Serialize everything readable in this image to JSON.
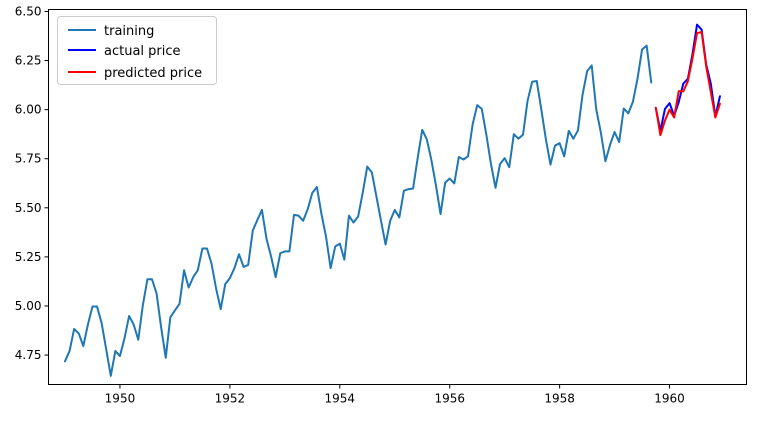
{
  "chart_data": {
    "type": "line",
    "title": "",
    "xlabel": "",
    "ylabel": "",
    "xlim": [
      1948.7,
      1961.4
    ],
    "ylim": [
      4.6,
      6.51
    ],
    "grid": false,
    "legend_position": "top-left",
    "x_ticks": [
      1950,
      1952,
      1954,
      1956,
      1958,
      1960
    ],
    "x_tick_labels": [
      "1950",
      "1952",
      "1954",
      "1956",
      "1958",
      "1960"
    ],
    "y_ticks": [
      4.75,
      5.0,
      5.25,
      5.5,
      5.75,
      6.0,
      6.25,
      6.5
    ],
    "y_tick_labels": [
      "4.75",
      "5.00",
      "5.25",
      "5.50",
      "5.75",
      "6.00",
      "6.25",
      "6.50"
    ],
    "series": [
      {
        "name": "training",
        "color": "#1f77b4",
        "x_start": "1949-01",
        "frequency": "monthly",
        "values": [
          4.718,
          4.771,
          4.883,
          4.86,
          4.796,
          4.905,
          4.997,
          4.997,
          4.913,
          4.779,
          4.644,
          4.771,
          4.745,
          4.836,
          4.949,
          4.905,
          4.828,
          5.004,
          5.136,
          5.136,
          5.063,
          4.89,
          4.736,
          4.942,
          4.977,
          5.011,
          5.182,
          5.094,
          5.147,
          5.182,
          5.293,
          5.293,
          5.215,
          5.088,
          4.984,
          5.112,
          5.142,
          5.193,
          5.263,
          5.199,
          5.209,
          5.384,
          5.438,
          5.489,
          5.342,
          5.252,
          5.147,
          5.268,
          5.278,
          5.278,
          5.464,
          5.46,
          5.434,
          5.493,
          5.576,
          5.606,
          5.468,
          5.352,
          5.193,
          5.303,
          5.318,
          5.236,
          5.46,
          5.425,
          5.455,
          5.576,
          5.71,
          5.68,
          5.557,
          5.434,
          5.313,
          5.434,
          5.489,
          5.451,
          5.587,
          5.595,
          5.598,
          5.753,
          5.897,
          5.849,
          5.743,
          5.613,
          5.468,
          5.628,
          5.649,
          5.624,
          5.759,
          5.746,
          5.762,
          5.924,
          6.023,
          6.004,
          5.872,
          5.724,
          5.602,
          5.724,
          5.753,
          5.707,
          5.875,
          5.852,
          5.872,
          6.045,
          6.142,
          6.146,
          6.001,
          5.849,
          5.72,
          5.817,
          5.829,
          5.762,
          5.892,
          5.852,
          5.894,
          6.075,
          6.196,
          6.225,
          6.001,
          5.883,
          5.737,
          5.82,
          5.886,
          5.835,
          6.006,
          5.981,
          6.04,
          6.157,
          6.306,
          6.326,
          6.138
        ]
      },
      {
        "name": "actual price",
        "color": "#0000ff",
        "x_start": "1959-10",
        "frequency": "monthly",
        "values": [
          6.009,
          5.892,
          6.004,
          6.033,
          5.969,
          6.038,
          6.133,
          6.157,
          6.282,
          6.433,
          6.407,
          6.23,
          6.133,
          5.966,
          6.068
        ]
      },
      {
        "name": "predicted price",
        "color": "#ff0000",
        "x_start": "1959-10",
        "frequency": "monthly",
        "values": [
          6.009,
          5.87,
          5.945,
          6.0,
          5.96,
          6.094,
          6.093,
          6.145,
          6.26,
          6.39,
          6.395,
          6.22,
          6.09,
          5.96,
          6.03
        ]
      }
    ]
  }
}
